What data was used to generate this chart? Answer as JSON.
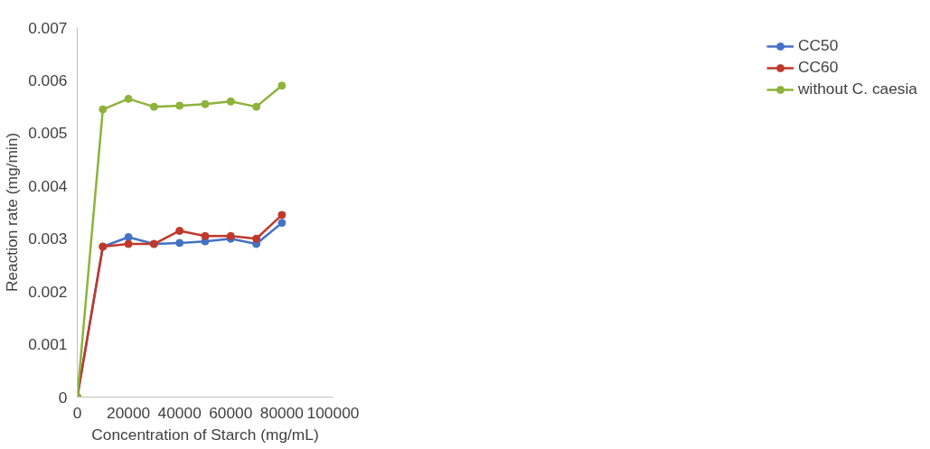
{
  "chart_data": {
    "type": "line",
    "xlabel": "Concentration of Starch (mg/mL)",
    "ylabel": "Reaction rate (mg/min)",
    "x": [
      0,
      10000,
      20000,
      30000,
      40000,
      50000,
      60000,
      70000,
      80000
    ],
    "series": [
      {
        "name": "CC50",
        "color": "#4472c4",
        "values": [
          0,
          0.00285,
          0.00303,
          0.0029,
          0.00292,
          0.00295,
          0.003,
          0.0029,
          0.0033
        ]
      },
      {
        "name": "CC60",
        "color": "#c0392b",
        "values": [
          0,
          0.00285,
          0.0029,
          0.0029,
          0.00315,
          0.00305,
          0.00305,
          0.003,
          0.00345
        ]
      },
      {
        "name": "without C. caesia",
        "color": "#8db33a",
        "values": [
          0,
          0.00545,
          0.00565,
          0.0055,
          0.00552,
          0.00555,
          0.0056,
          0.0055,
          0.0059
        ]
      }
    ],
    "xlim": [
      0,
      100000
    ],
    "xticks": [
      0,
      20000,
      40000,
      60000,
      80000,
      100000
    ],
    "ylim": [
      0,
      0.007
    ],
    "yticks": [
      0,
      0.001,
      0.002,
      0.003,
      0.004,
      0.005,
      0.006,
      0.007
    ],
    "grid": false,
    "legend": "right",
    "marker": "circle",
    "line_style": "solid"
  }
}
